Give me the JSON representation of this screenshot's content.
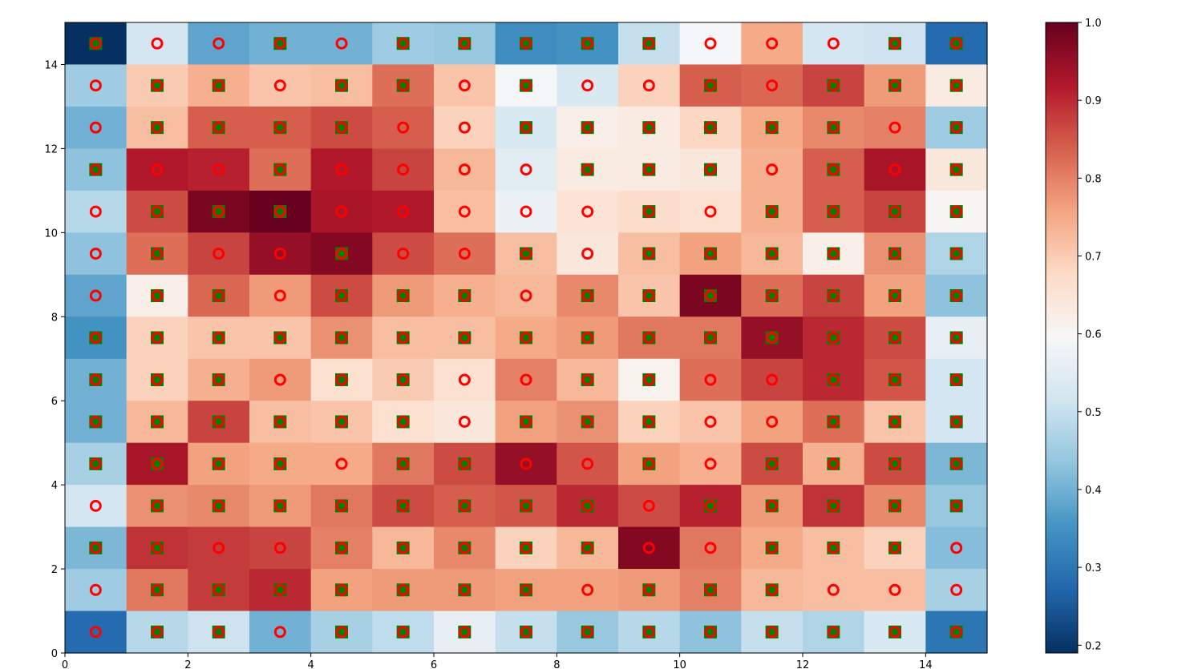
{
  "chart_data": {
    "type": "heatmap",
    "title": "",
    "xlabel": "",
    "ylabel": "",
    "xlim": [
      0,
      15
    ],
    "ylim": [
      0,
      15
    ],
    "xticks": [
      "0",
      "2",
      "4",
      "6",
      "8",
      "10",
      "12",
      "14"
    ],
    "yticks": [
      "0",
      "2",
      "4",
      "6",
      "8",
      "10",
      "12",
      "14"
    ],
    "grid": false,
    "colormap": "RdBu_r",
    "colorbar": {
      "range": [
        0.19,
        1.0
      ],
      "ticks": [
        "0.2",
        "0.3",
        "0.4",
        "0.5",
        "0.6",
        "0.7",
        "0.8",
        "0.9",
        "1.0"
      ]
    },
    "values_row_order": "y from 14.5 (top) down to 0.5 (bottom)",
    "values": [
      [
        0.19,
        0.52,
        0.38,
        0.4,
        0.4,
        0.45,
        0.44,
        0.34,
        0.35,
        0.5,
        0.59,
        0.75,
        0.52,
        0.51,
        0.28
      ],
      [
        0.45,
        0.7,
        0.74,
        0.71,
        0.72,
        0.82,
        0.71,
        0.59,
        0.53,
        0.69,
        0.84,
        0.83,
        0.87,
        0.77,
        0.63
      ],
      [
        0.4,
        0.72,
        0.84,
        0.84,
        0.86,
        0.84,
        0.69,
        0.53,
        0.62,
        0.63,
        0.68,
        0.75,
        0.79,
        0.8,
        0.45
      ],
      [
        0.43,
        0.92,
        0.91,
        0.82,
        0.92,
        0.87,
        0.73,
        0.55,
        0.63,
        0.63,
        0.64,
        0.74,
        0.84,
        0.93,
        0.64
      ],
      [
        0.48,
        0.86,
        0.98,
        1.0,
        0.93,
        0.92,
        0.72,
        0.57,
        0.65,
        0.67,
        0.66,
        0.74,
        0.84,
        0.87,
        0.6
      ],
      [
        0.43,
        0.82,
        0.87,
        0.95,
        0.97,
        0.86,
        0.82,
        0.72,
        0.64,
        0.72,
        0.76,
        0.73,
        0.62,
        0.78,
        0.47
      ],
      [
        0.38,
        0.62,
        0.83,
        0.77,
        0.86,
        0.77,
        0.74,
        0.73,
        0.79,
        0.71,
        0.98,
        0.82,
        0.87,
        0.76,
        0.43
      ],
      [
        0.35,
        0.69,
        0.71,
        0.71,
        0.78,
        0.72,
        0.72,
        0.75,
        0.77,
        0.81,
        0.81,
        0.95,
        0.9,
        0.86,
        0.56
      ],
      [
        0.4,
        0.69,
        0.74,
        0.77,
        0.66,
        0.7,
        0.66,
        0.8,
        0.73,
        0.61,
        0.82,
        0.87,
        0.9,
        0.85,
        0.52
      ],
      [
        0.4,
        0.73,
        0.87,
        0.72,
        0.71,
        0.66,
        0.64,
        0.76,
        0.78,
        0.69,
        0.71,
        0.76,
        0.82,
        0.71,
        0.52
      ],
      [
        0.46,
        0.93,
        0.76,
        0.75,
        0.75,
        0.81,
        0.86,
        0.95,
        0.85,
        0.76,
        0.74,
        0.86,
        0.74,
        0.86,
        0.41
      ],
      [
        0.52,
        0.78,
        0.79,
        0.77,
        0.81,
        0.86,
        0.84,
        0.85,
        0.9,
        0.86,
        0.91,
        0.77,
        0.89,
        0.79,
        0.44
      ],
      [
        0.41,
        0.89,
        0.88,
        0.87,
        0.8,
        0.73,
        0.79,
        0.69,
        0.73,
        0.97,
        0.81,
        0.75,
        0.72,
        0.69,
        0.42
      ],
      [
        0.45,
        0.81,
        0.88,
        0.9,
        0.76,
        0.77,
        0.77,
        0.76,
        0.76,
        0.77,
        0.8,
        0.73,
        0.72,
        0.72,
        0.46
      ],
      [
        0.28,
        0.48,
        0.51,
        0.4,
        0.46,
        0.49,
        0.56,
        0.5,
        0.44,
        0.48,
        0.43,
        0.5,
        0.47,
        0.53,
        0.3
      ]
    ],
    "markers": [
      {
        "shape": "square",
        "color": "#008000",
        "description": "filled square at cell center"
      },
      {
        "shape": "circle",
        "color": "#ff0000",
        "description": "hollow ring drawn over every cell center"
      }
    ],
    "square_mask": [
      [
        1,
        0,
        0,
        1,
        0,
        1,
        1,
        1,
        1,
        1,
        0,
        0,
        0,
        1,
        1
      ],
      [
        0,
        1,
        1,
        0,
        1,
        1,
        0,
        1,
        0,
        0,
        1,
        0,
        1,
        1,
        1
      ],
      [
        0,
        1,
        1,
        1,
        1,
        0,
        0,
        1,
        1,
        1,
        1,
        1,
        1,
        0,
        1
      ],
      [
        1,
        0,
        0,
        1,
        0,
        0,
        0,
        0,
        1,
        1,
        1,
        0,
        1,
        0,
        1
      ],
      [
        0,
        1,
        1,
        1,
        0,
        0,
        0,
        0,
        0,
        1,
        0,
        1,
        1,
        1,
        1
      ],
      [
        0,
        1,
        0,
        0,
        1,
        0,
        0,
        1,
        0,
        1,
        1,
        1,
        1,
        1,
        1
      ],
      [
        0,
        1,
        1,
        0,
        1,
        1,
        1,
        0,
        1,
        1,
        1,
        1,
        1,
        1,
        1
      ],
      [
        1,
        1,
        1,
        1,
        1,
        1,
        1,
        1,
        1,
        1,
        1,
        1,
        1,
        1,
        1
      ],
      [
        1,
        1,
        1,
        0,
        1,
        1,
        0,
        0,
        1,
        1,
        0,
        0,
        1,
        1,
        1
      ],
      [
        1,
        1,
        1,
        1,
        1,
        1,
        0,
        1,
        1,
        1,
        0,
        0,
        1,
        1,
        1
      ],
      [
        1,
        1,
        1,
        1,
        0,
        1,
        1,
        0,
        0,
        1,
        0,
        1,
        1,
        1,
        1
      ],
      [
        0,
        1,
        1,
        1,
        1,
        1,
        1,
        1,
        1,
        0,
        1,
        1,
        1,
        1,
        1
      ],
      [
        1,
        1,
        0,
        0,
        1,
        1,
        1,
        1,
        1,
        0,
        0,
        1,
        1,
        1,
        0
      ],
      [
        0,
        1,
        1,
        1,
        1,
        1,
        1,
        1,
        0,
        1,
        1,
        1,
        0,
        0,
        0
      ],
      [
        0,
        1,
        1,
        0,
        1,
        1,
        1,
        1,
        1,
        1,
        1,
        1,
        1,
        1,
        1
      ]
    ]
  }
}
